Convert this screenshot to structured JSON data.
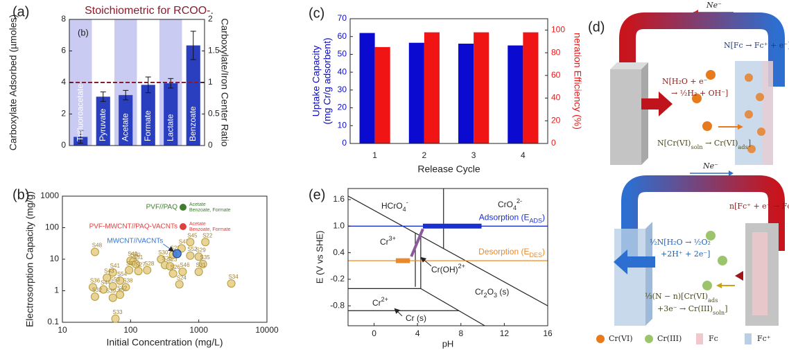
{
  "chart_data": [
    {
      "type": "bar",
      "label": "(a)",
      "title": "Stoichiometric for RCOO-.",
      "title_color": "#8b1a2b",
      "inset_label": "(b)",
      "categories": [
        "Trifluoroacetate",
        "Pyruvate",
        "Acetate",
        "Formate",
        "Lactate",
        "Benzoate"
      ],
      "values": [
        0.55,
        3.1,
        3.2,
        3.85,
        3.95,
        6.35
      ],
      "errors": [
        0.4,
        0.3,
        0.3,
        0.5,
        0.3,
        0.9
      ],
      "color": "#2a3fc0",
      "stripe_color": "#c9cbf2",
      "ylabel": "Carboxylate Adsorbed (µmoles)",
      "y2label": "Carboxylate/Iron Center Ratio",
      "ylim": [
        0,
        8
      ],
      "yticks": [
        0,
        2,
        4,
        6,
        8
      ],
      "y2lim": [
        0,
        2
      ],
      "y2ticks": [
        0,
        0.5,
        1,
        1.5,
        2
      ],
      "reference_lines": [
        {
          "value": 1,
          "axis": "y2",
          "color": "#8b1a2b"
        }
      ]
    },
    {
      "type": "scatter",
      "label": "(b)",
      "xlabel": "Initial Concentration (mg/L)",
      "ylabel": "Electrosorption Capacity (mg/g)",
      "log_x": true,
      "log_y": true,
      "xlim": [
        10,
        10000
      ],
      "ylim": [
        0.1,
        1000
      ],
      "xticks": [
        10,
        100,
        1000,
        10000
      ],
      "yticks": [
        0.1,
        1,
        10,
        100,
        1000
      ],
      "series": [
        {
          "color": "#e3cc84",
          "point_labels": [
            "S48",
            "S49",
            "S50",
            "S51",
            "S37",
            "S27",
            "S28",
            "S41",
            "S43",
            "S54",
            "S36",
            "S44",
            "S53",
            "S38",
            "S32",
            "S39-40",
            "S42",
            "S33",
            "S30",
            "S25",
            "S23",
            "S21",
            "S47",
            "S45",
            "S52",
            "S26",
            "S46",
            "S24",
            "S22",
            "S29",
            "S35",
            "S31",
            "S34"
          ],
          "x": [
            30,
            100,
            110,
            120,
            95,
            130,
            175,
            55,
            45,
            70,
            28,
            40,
            55,
            85,
            30,
            55,
            70,
            60,
            280,
            320,
            380,
            420,
            560,
            750,
            750,
            420,
            580,
            520,
            1250,
            1000,
            1150,
            1000,
            3000
          ],
          "values": [
            17,
            9,
            8.5,
            7,
            4.5,
            4.2,
            4.5,
            3.8,
            2.6,
            2.1,
            1.3,
            1.1,
            1.4,
            1.3,
            0.65,
            0.6,
            0.75,
            0.13,
            10,
            6.5,
            6,
            14,
            22,
            35,
            13,
            3.5,
            4,
            1.6,
            35,
            12,
            7,
            4,
            1.7
          ]
        },
        {
          "name": "MWCNT//VACNTs",
          "color": "#2f74d8",
          "x": [
            480
          ],
          "values": [
            15
          ]
        }
      ],
      "legend": [
        {
          "name": "PVF//PAQ",
          "color": "#3f7d2e",
          "note": [
            "Acetate",
            "Benzoate, Formate"
          ]
        },
        {
          "name": "PVF-MWCNT//PAQ-VACNTs",
          "color": "#e04040",
          "note": [
            "Acetate",
            "Benzoate, Formate"
          ]
        }
      ]
    },
    {
      "type": "bar",
      "label": "(c)",
      "categories": [
        "1",
        "2",
        "3",
        "4"
      ],
      "xlabel": "Release Cycle",
      "ylabel": [
        "Uptake Capacity",
        "(mg Cr/g adsorbent)"
      ],
      "y2label": "neration Efficiency (%)",
      "ylim": [
        0,
        70
      ],
      "yticks": [
        0,
        10,
        20,
        30,
        40,
        50,
        60,
        70
      ],
      "y2lim": [
        0,
        110
      ],
      "y2ticks": [
        0,
        20,
        40,
        60,
        80,
        100
      ],
      "series": [
        {
          "color": "#0a0ad0",
          "values": [
            62,
            56.5,
            56,
            55
          ]
        },
        {
          "color": "#f01414",
          "axis": "y2",
          "values": [
            85,
            98,
            98,
            98
          ]
        }
      ]
    },
    {
      "type": "pourbaix",
      "label": "(e)",
      "xlabel": "pH",
      "ylabel": "E (V vs SHE)",
      "xlim": [
        -2.4,
        16
      ],
      "ylim": [
        -1.25,
        1.85
      ],
      "xticks": [
        0,
        4,
        8,
        12,
        16
      ],
      "yticks": [
        -0.8,
        -0.2,
        0.4,
        {
          "value": 1,
          "label": "1.0"
        },
        1.6
      ],
      "lines": [
        {
          "x": [
            -2.4,
            16
          ],
          "values": [
            1.68,
            -0.8
          ]
        },
        {
          "x": [
            6.4,
            6.4
          ],
          "values": [
            1.85,
            0.49
          ]
        },
        {
          "x": [
            3.8,
            3.8
          ],
          "values": [
            0.84,
            -0.37
          ]
        },
        {
          "x": [
            4.3,
            4.3
          ],
          "values": [
            0.77,
            -0.41
          ]
        },
        {
          "x": [
            -2.4,
            4.3
          ],
          "values": [
            -0.41,
            -0.41
          ]
        },
        {
          "x": [
            4.3,
            10.2
          ],
          "values": [
            -0.41,
            -1.25
          ]
        },
        {
          "x": [
            -2.4,
            7.8
          ],
          "values": [
            -0.91,
            -0.91
          ]
        }
      ],
      "reference_lines": [
        {
          "value": 1,
          "color": "#1a2fd0",
          "label": [
            "Adsorption (E",
            {
              "sub": "ADS"
            },
            ")"
          ],
          "highlight": [
            4.5,
            9.9
          ]
        },
        {
          "value": 0.22,
          "color": "#e8892b",
          "label": [
            "Desorption (E",
            {
              "sub": "DES"
            },
            ")"
          ],
          "highlight": [
            2.0,
            3.3
          ]
        }
      ],
      "regions": [
        [
          "HCrO",
          {
            "sub": "4"
          },
          {
            "sup": "-"
          }
        ],
        [
          "CrO",
          {
            "sub": "4"
          },
          {
            "sup": "2-"
          }
        ],
        [
          "Cr",
          {
            "sup": "3+"
          }
        ],
        [
          "Cr(OH)",
          {
            "sup": "2+"
          }
        ],
        [
          "Cr",
          {
            "sub": "2"
          },
          "O",
          {
            "sub": "3"
          },
          " (s)"
        ],
        [
          "Cr",
          {
            "sup": "2+"
          }
        ],
        [
          "Cr (s)"
        ]
      ]
    }
  ],
  "diagram": {
    "label": "(d)",
    "top": {
      "electron_flow": "Ne⁻",
      "anode": "N[Fc → Fc⁺ + e⁻]",
      "cathode": [
        "N[H₂O + e⁻",
        "→ ½H₂ + OH⁻]"
      ],
      "adsorption": [
        "N[Cr(VI)",
        {
          "sub": "soln"
        },
        " → Cr(VI)",
        {
          "sub": "ads"
        },
        "]"
      ]
    },
    "bottom": {
      "electron_flow": "Ne⁻",
      "cathode": "n[Fc⁺ + e⁻ → Fc]",
      "anode": [
        "½N[H₂O → ½O₂",
        "+2H⁺ + 2e⁻]"
      ],
      "reduction": [
        [
          "⅓(N − n)[Cr(VI)",
          {
            "sub": "ads"
          }
        ],
        [
          "+3e⁻ → Cr(III)",
          {
            "sub": "soln"
          },
          "]"
        ]
      ]
    },
    "legend": [
      "Cr(VI)",
      "Cr(III)",
      "Fc",
      "Fc⁺"
    ]
  }
}
